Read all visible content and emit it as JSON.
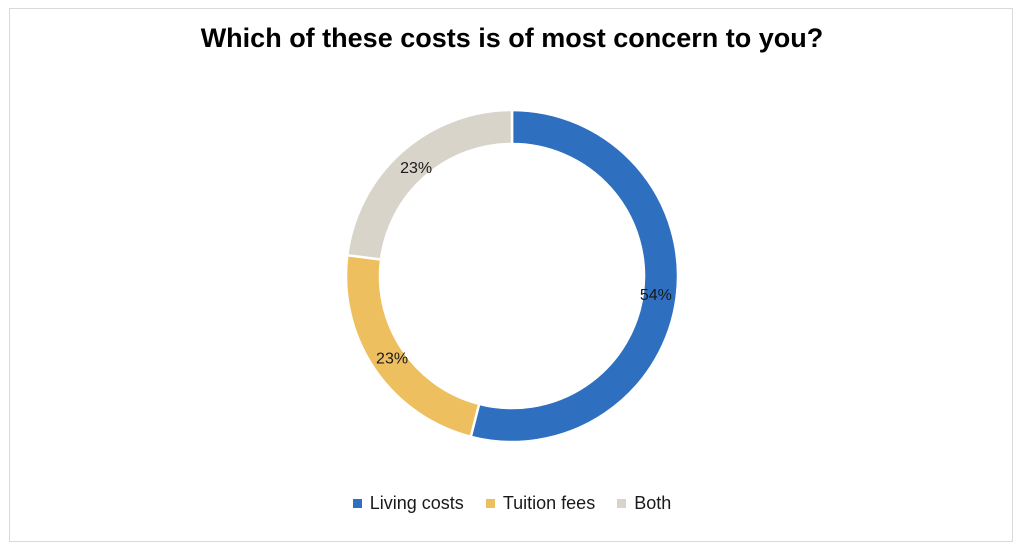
{
  "chart_data": {
    "type": "pie",
    "variant": "donut",
    "title": "Which of these costs is of most concern to you?",
    "categories": [
      "Living costs",
      "Tuition fees",
      "Both"
    ],
    "values": [
      54,
      23,
      23
    ],
    "value_labels": [
      "54%",
      "23%",
      "23%"
    ],
    "colors": [
      "#2E6FBF",
      "#EDBF5F",
      "#D8D4C9"
    ],
    "legend_position": "bottom"
  }
}
